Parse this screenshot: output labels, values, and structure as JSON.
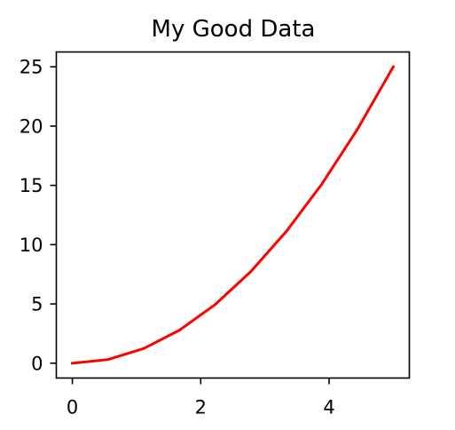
{
  "chart_data": {
    "type": "line",
    "title": "My Good Data",
    "xlabel": "",
    "ylabel": "",
    "x": [
      0,
      0.5556,
      1.1111,
      1.6667,
      2.2222,
      2.7778,
      3.3333,
      3.8889,
      4.4444,
      5.0
    ],
    "series": [
      {
        "values": [
          0,
          0.309,
          1.235,
          2.778,
          4.938,
          7.716,
          11.111,
          15.123,
          19.753,
          25.0
        ],
        "color": "#ff0000"
      }
    ],
    "xlim": [
      -0.25,
      5.25
    ],
    "ylim": [
      -1.25,
      26.25
    ],
    "xticks": [
      0,
      2,
      4
    ],
    "yticks": [
      0,
      5,
      10,
      15,
      20,
      25
    ],
    "grid": false,
    "legend": "none"
  }
}
